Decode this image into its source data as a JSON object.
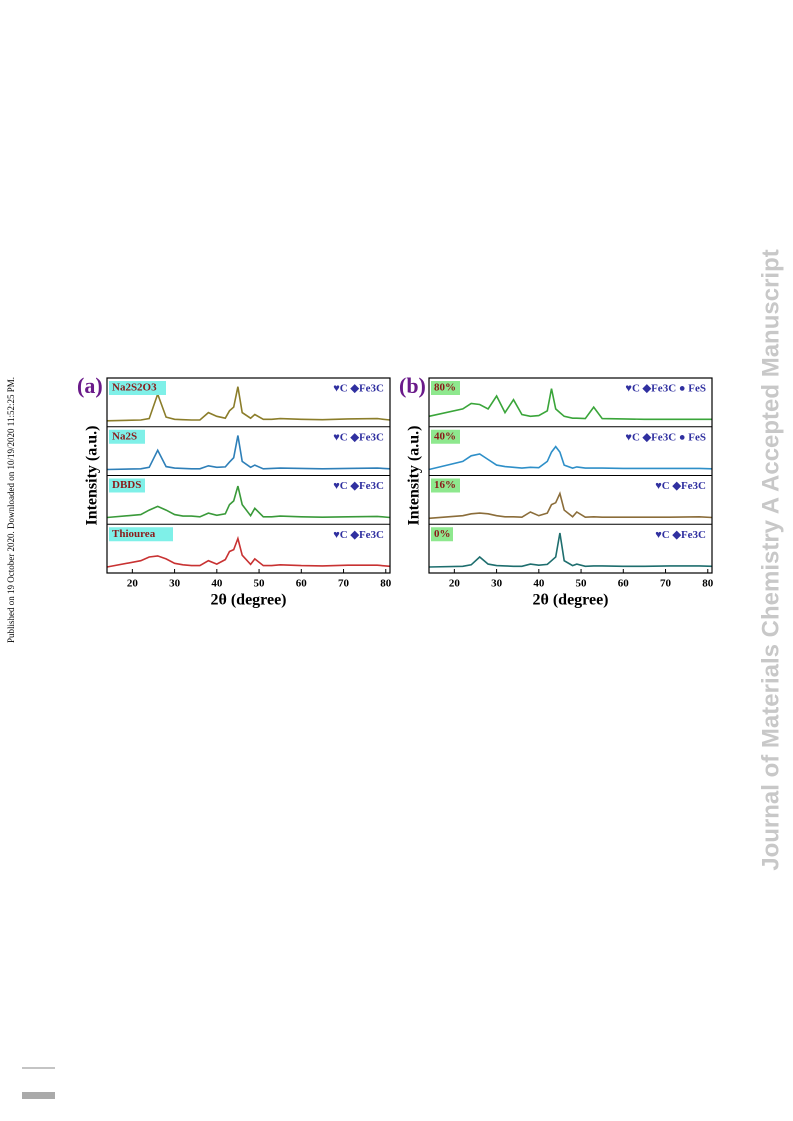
{
  "watermark": "Journal of Materials Chemistry A Accepted Manuscript",
  "published": "Published on 19 October 2020. Downloaded on 10/19/2020 11:52:25 PM.",
  "chart_data": [
    {
      "type": "line",
      "panel_label": "(a)",
      "x_label": "2θ (degree)",
      "y_label": "Intensity (a.u.)",
      "x": [
        14,
        22,
        24,
        26,
        28,
        30,
        32,
        34,
        36,
        38,
        40,
        42,
        43,
        44,
        45,
        46,
        48,
        49,
        51,
        53,
        55,
        60,
        65,
        71,
        78,
        81
      ],
      "xlim": [
        14,
        81
      ],
      "xticks": [
        20,
        30,
        40,
        50,
        60,
        70,
        80
      ],
      "ylim": [
        0,
        110
      ],
      "series": [
        {
          "name": "Na2S2O3",
          "legend": "♥C ◆Fe3C",
          "color": "#8b7d2a",
          "values": [
            8,
            10,
            14,
            80,
            18,
            12,
            11,
            10,
            10,
            30,
            20,
            15,
            35,
            45,
            100,
            30,
            15,
            25,
            12,
            12,
            14,
            12,
            11,
            13,
            14,
            10
          ]
        },
        {
          "name": "Na2S",
          "legend": "♥C ◆Fe3C",
          "color": "#2e7fb8",
          "values": [
            8,
            10,
            14,
            60,
            16,
            12,
            11,
            10,
            10,
            18,
            14,
            15,
            28,
            40,
            100,
            30,
            14,
            20,
            10,
            11,
            12,
            11,
            10,
            11,
            12,
            10
          ]
        },
        {
          "name": "DBDS",
          "legend": "♥C ◆Fe3C",
          "color": "#3a9a3a",
          "values": [
            10,
            18,
            30,
            40,
            30,
            18,
            14,
            14,
            12,
            22,
            16,
            20,
            45,
            55,
            95,
            45,
            15,
            35,
            12,
            12,
            14,
            12,
            11,
            12,
            13,
            10
          ]
        },
        {
          "name": "Thiourea",
          "legend": "♥C ◆Fe3C",
          "color": "#c83232",
          "values": [
            8,
            25,
            35,
            38,
            30,
            18,
            14,
            12,
            12,
            25,
            16,
            28,
            50,
            55,
            85,
            40,
            15,
            30,
            12,
            12,
            14,
            12,
            11,
            13,
            13,
            10
          ]
        }
      ]
    },
    {
      "type": "line",
      "panel_label": "(b)",
      "x_label": "2θ (degree)",
      "y_label": "Intensity (a.u.)",
      "x": [
        14,
        22,
        24,
        26,
        28,
        30,
        32,
        34,
        36,
        38,
        40,
        42,
        43,
        44,
        45,
        46,
        48,
        49,
        51,
        53,
        55,
        60,
        65,
        71,
        78,
        81
      ],
      "xlim": [
        14,
        81
      ],
      "xticks": [
        20,
        30,
        40,
        50,
        60,
        70,
        80
      ],
      "ylim": [
        0,
        110
      ],
      "series": [
        {
          "name": "80%",
          "legend": "♥C ◆Fe3C ● FeS",
          "color": "#3aa53a",
          "values": [
            20,
            40,
            55,
            52,
            40,
            75,
            30,
            65,
            25,
            20,
            22,
            35,
            95,
            40,
            30,
            20,
            15,
            15,
            14,
            45,
            14,
            13,
            12,
            12,
            12,
            12
          ]
        },
        {
          "name": "40%",
          "legend": "♥C ◆Fe3C ● FeS",
          "color": "#2e8fc8",
          "values": [
            8,
            30,
            45,
            50,
            35,
            20,
            16,
            14,
            12,
            14,
            13,
            30,
            55,
            70,
            55,
            20,
            12,
            15,
            12,
            12,
            12,
            11,
            11,
            11,
            11,
            10
          ]
        },
        {
          "name": "16%",
          "legend": "♥C ◆Fe3C",
          "color": "#8b6d3a",
          "values": [
            8,
            15,
            20,
            22,
            20,
            15,
            12,
            12,
            11,
            25,
            15,
            22,
            45,
            50,
            75,
            30,
            12,
            25,
            11,
            12,
            11,
            11,
            11,
            11,
            12,
            10
          ]
        },
        {
          "name": "0%",
          "legend": "♥C ◆Fe3C",
          "color": "#1e6e6e",
          "values": [
            8,
            10,
            14,
            35,
            16,
            12,
            11,
            10,
            10,
            16,
            13,
            15,
            25,
            35,
            100,
            25,
            12,
            16,
            10,
            11,
            11,
            10,
            10,
            11,
            11,
            10
          ]
        }
      ]
    }
  ]
}
